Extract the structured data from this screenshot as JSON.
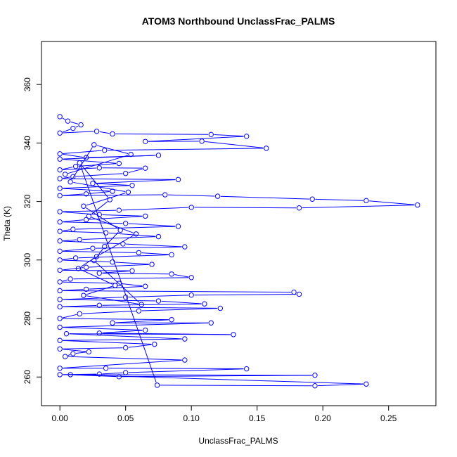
{
  "chart_data": {
    "type": "scatter",
    "title": "ATOM3 Northbound UnclassFrac_PALMS",
    "xlabel": "UnclassFrac_PALMS",
    "ylabel": "Theta (K)",
    "xlim": [
      -0.014,
      0.286
    ],
    "ylim": [
      250.2,
      374.7
    ],
    "x_ticks": [
      0.0,
      0.05,
      0.1,
      0.15,
      0.2,
      0.25
    ],
    "x_tick_labels": [
      "0.00",
      "0.05",
      "0.10",
      "0.15",
      "0.20",
      "0.25"
    ],
    "y_ticks": [
      260,
      280,
      300,
      320,
      340,
      360
    ],
    "y_tick_labels": [
      "260",
      "280",
      "300",
      "320",
      "340",
      "360"
    ],
    "grid": false,
    "legend": "none",
    "style": "points connected by lines (type='b')",
    "series": [
      {
        "color": "#0000ff",
        "points": [
          [
            0.0,
            349.0
          ],
          [
            0.006,
            347.5
          ],
          [
            0.016,
            346.2
          ],
          [
            0.01,
            345.0
          ],
          [
            0.0,
            343.4
          ],
          [
            0.028,
            344.0
          ],
          [
            0.04,
            343.1
          ],
          [
            0.115,
            342.9
          ],
          [
            0.142,
            342.3
          ],
          [
            0.065,
            340.5
          ],
          [
            0.108,
            340.6
          ],
          [
            0.157,
            338.2
          ],
          [
            0.034,
            337.5
          ],
          [
            0.0,
            336.3
          ],
          [
            0.02,
            335.0
          ],
          [
            0.075,
            335.8
          ],
          [
            0.0,
            334.5
          ],
          [
            0.045,
            333.0
          ],
          [
            0.012,
            332.0
          ],
          [
            0.0,
            330.8
          ],
          [
            0.03,
            331.5
          ],
          [
            0.065,
            331.4
          ],
          [
            0.05,
            329.6
          ],
          [
            0.01,
            328.5
          ],
          [
            0.0,
            327.8
          ],
          [
            0.09,
            327.5
          ],
          [
            0.025,
            326.2
          ],
          [
            0.055,
            325.5
          ],
          [
            0.0,
            324.5
          ],
          [
            0.04,
            323.5
          ],
          [
            0.02,
            322.6
          ],
          [
            0.0,
            322.0
          ],
          [
            0.08,
            322.3
          ],
          [
            0.12,
            321.8
          ],
          [
            0.192,
            320.8
          ],
          [
            0.233,
            320.3
          ],
          [
            0.272,
            318.8
          ],
          [
            0.182,
            317.8
          ],
          [
            0.1,
            318.0
          ],
          [
            0.045,
            317.0
          ],
          [
            0.0,
            316.5
          ],
          [
            0.03,
            315.5
          ],
          [
            0.065,
            315.0
          ],
          [
            0.02,
            313.8
          ],
          [
            0.0,
            313.0
          ],
          [
            0.05,
            312.5
          ],
          [
            0.09,
            311.5
          ],
          [
            0.01,
            310.5
          ],
          [
            0.0,
            309.8
          ],
          [
            0.035,
            309.3
          ],
          [
            0.075,
            308.0
          ],
          [
            0.015,
            307.0
          ],
          [
            0.0,
            306.5
          ],
          [
            0.048,
            305.5
          ],
          [
            0.095,
            304.5
          ],
          [
            0.025,
            304.0
          ],
          [
            0.0,
            303.0
          ],
          [
            0.06,
            302.5
          ],
          [
            0.085,
            301.8
          ],
          [
            0.012,
            300.7
          ],
          [
            0.0,
            300.0
          ],
          [
            0.04,
            299.3
          ],
          [
            0.07,
            298.5
          ],
          [
            0.02,
            297.5
          ],
          [
            0.0,
            296.5
          ],
          [
            0.055,
            296.3
          ],
          [
            0.03,
            295.5
          ],
          [
            0.085,
            295.2
          ],
          [
            0.1,
            294.0
          ],
          [
            0.008,
            293.5
          ],
          [
            0.0,
            292.5
          ],
          [
            0.045,
            292.0
          ],
          [
            0.065,
            291.0
          ],
          [
            0.02,
            290.0
          ],
          [
            0.0,
            289.5
          ],
          [
            0.178,
            289.0
          ],
          [
            0.182,
            288.3
          ],
          [
            0.1,
            288.0
          ],
          [
            0.05,
            287.3
          ],
          [
            0.0,
            286.5
          ],
          [
            0.075,
            286.0
          ],
          [
            0.11,
            285.0
          ],
          [
            0.03,
            284.5
          ],
          [
            0.0,
            284.0
          ],
          [
            0.122,
            283.5
          ],
          [
            0.06,
            282.6
          ],
          [
            0.015,
            281.6
          ],
          [
            0.0,
            280.0
          ],
          [
            0.085,
            279.6
          ],
          [
            0.04,
            278.5
          ],
          [
            0.115,
            278.5
          ],
          [
            0.0,
            277.0
          ],
          [
            0.065,
            276.0
          ],
          [
            0.03,
            275.0
          ],
          [
            0.132,
            274.5
          ],
          [
            0.005,
            274.8
          ],
          [
            0.095,
            273.0
          ],
          [
            0.0,
            272.5
          ],
          [
            0.072,
            271.2
          ],
          [
            0.05,
            270.0
          ],
          [
            0.0,
            269.6
          ],
          [
            0.022,
            268.6
          ],
          [
            0.01,
            268.0
          ],
          [
            0.004,
            267.0
          ],
          [
            0.095,
            265.8
          ],
          [
            0.0,
            263.0
          ],
          [
            0.035,
            263.0
          ],
          [
            0.142,
            262.8
          ],
          [
            0.05,
            261.5
          ],
          [
            0.03,
            261.0
          ],
          [
            0.0,
            260.8
          ],
          [
            0.194,
            260.6
          ],
          [
            0.045,
            260.1
          ],
          [
            0.008,
            260.8
          ],
          [
            0.233,
            257.6
          ],
          [
            0.194,
            257.0
          ],
          [
            0.074,
            257.2
          ],
          [
            0.015,
            333.2
          ],
          [
            0.038,
            320.6
          ],
          [
            0.022,
            314.9
          ],
          [
            0.058,
            308.9
          ],
          [
            0.028,
            301.2
          ],
          [
            0.014,
            297.1
          ],
          [
            0.042,
            291.3
          ],
          [
            0.018,
            287.9
          ],
          [
            0.062,
            284.8
          ],
          [
            0.026,
            299.8
          ],
          [
            0.034,
            304.6
          ],
          [
            0.046,
            310.2
          ],
          [
            0.018,
            318.4
          ],
          [
            0.052,
            323.2
          ],
          [
            0.008,
            326.7
          ],
          [
            0.026,
            339.4
          ],
          [
            0.054,
            336.1
          ],
          [
            0.004,
            329.3
          ]
        ]
      }
    ]
  }
}
